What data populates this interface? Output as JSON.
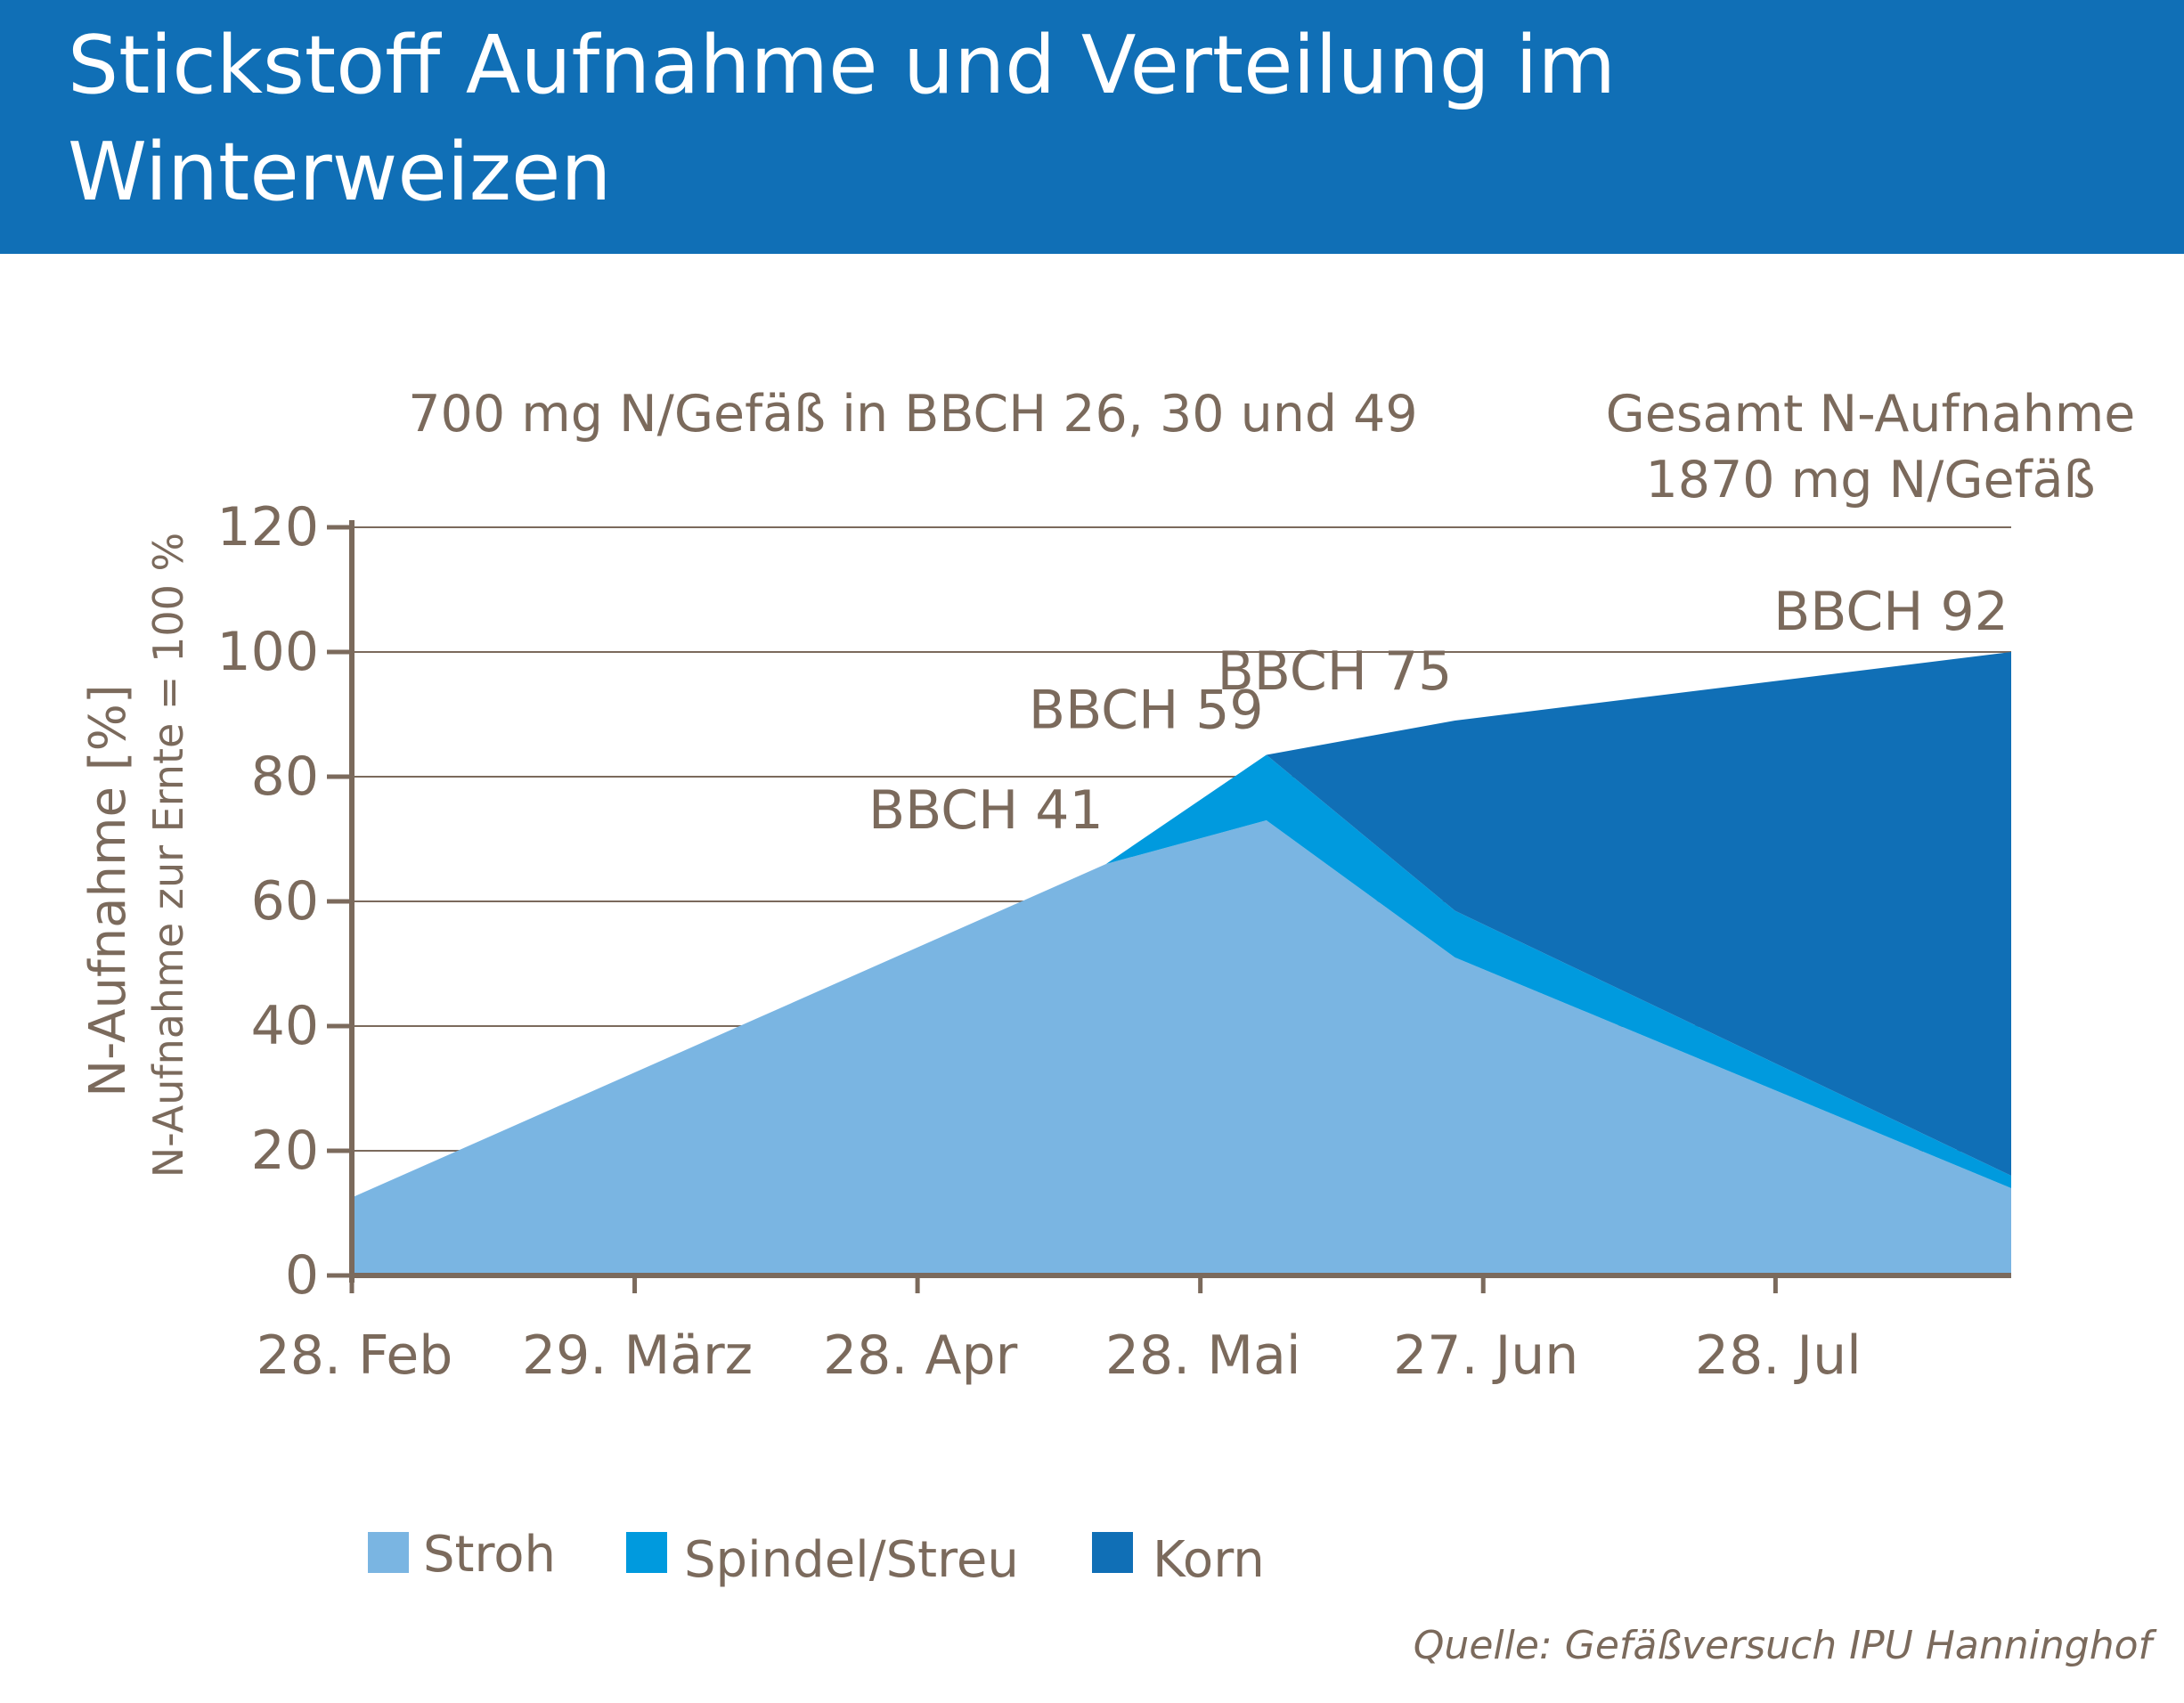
{
  "header": {
    "title": "Stickstoff Aufnahme und Verteilung im Winterweizen"
  },
  "annotations": {
    "left_note": "700 mg N/Gefäß in BBCH 26, 30 und 49",
    "right_note_line1": "Gesamt N-Aufnahme",
    "right_note_line2": "1870 mg N/Gefäß"
  },
  "source": "Quelle: Gefäßversuch IPU Hanninghof",
  "colors": {
    "banner": "#106fb6",
    "text": "#7b6a5c",
    "grid": "#7b6a5c",
    "stroh": "#7ab5e2",
    "spindel": "#009ade",
    "korn": "#106fb6"
  },
  "chart_data": {
    "type": "area",
    "stacked": true,
    "ylabel": "N-Aufnahme [%]",
    "ylabel2": "N-Aufnahme zur Ernte = 100 %",
    "ylim": [
      0,
      120
    ],
    "yticks": [
      "0",
      "20",
      "40",
      "60",
      "80",
      "100",
      "120"
    ],
    "xlim": [
      "2020-02-28",
      "2020-08-22"
    ],
    "xticks": [
      {
        "date": "2020-02-28",
        "label": "28. Feb"
      },
      {
        "date": "2020-03-29",
        "label": "29. März"
      },
      {
        "date": "2020-04-28",
        "label": "28. Apr"
      },
      {
        "date": "2020-05-28",
        "label": "28. Mai"
      },
      {
        "date": "2020-06-27",
        "label": "27. Jun"
      },
      {
        "date": "2020-07-28",
        "label": "28. Jul"
      }
    ],
    "grid": true,
    "legend": "bottom",
    "series": [
      {
        "name": "Stroh",
        "points": [
          {
            "x": "2020-02-28",
            "y": 12.5
          },
          {
            "x": "2020-05-18",
            "y": 66
          },
          {
            "x": "2020-06-04",
            "y": 73
          },
          {
            "x": "2020-06-24",
            "y": 51
          },
          {
            "x": "2020-08-22",
            "y": 14
          }
        ]
      },
      {
        "name": "Spindel/Streu",
        "points": [
          {
            "x": "2020-02-28",
            "y": 0
          },
          {
            "x": "2020-05-18",
            "y": 0
          },
          {
            "x": "2020-06-04",
            "y": 10.5
          },
          {
            "x": "2020-06-24",
            "y": 7.5
          },
          {
            "x": "2020-08-22",
            "y": 2
          }
        ]
      },
      {
        "name": "Korn",
        "points": [
          {
            "x": "2020-02-28",
            "y": 0
          },
          {
            "x": "2020-05-18",
            "y": 0
          },
          {
            "x": "2020-06-04",
            "y": 0
          },
          {
            "x": "2020-06-24",
            "y": 30.5
          },
          {
            "x": "2020-08-22",
            "y": 84
          }
        ]
      }
    ],
    "stage_labels": [
      {
        "label": "BBCH 41",
        "x": "2020-05-18",
        "y": 66
      },
      {
        "label": "BBCH 59",
        "x": "2020-06-04",
        "y": 83.5
      },
      {
        "label": "BBCH 75",
        "x": "2020-06-24",
        "y": 89
      },
      {
        "label": "BBCH 92",
        "x": "2020-08-22",
        "y": 100
      }
    ]
  }
}
